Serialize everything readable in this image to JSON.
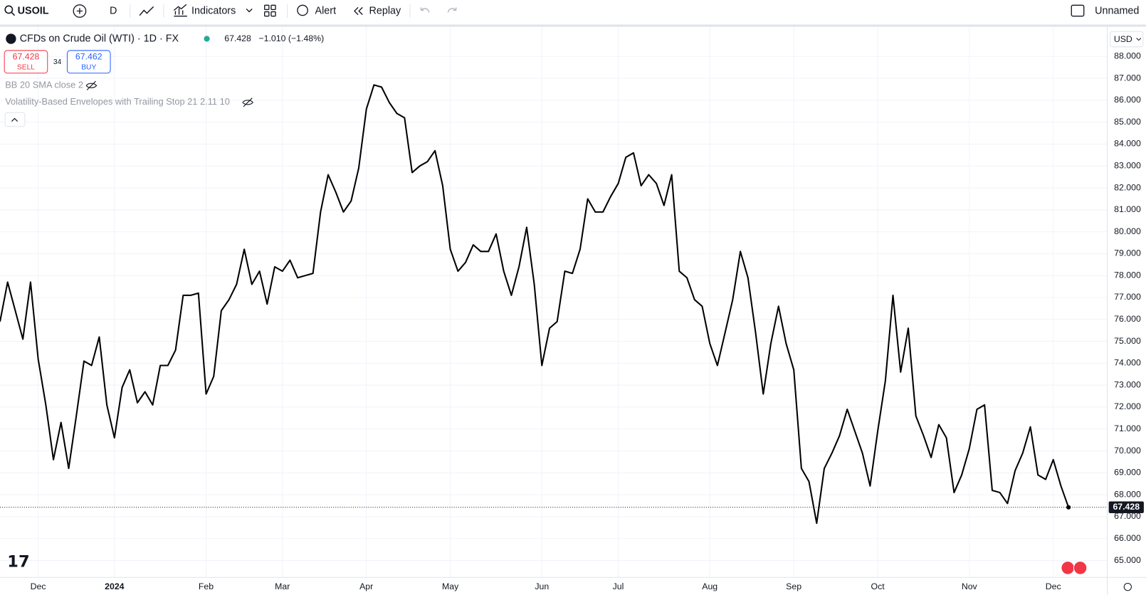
{
  "toolbar": {
    "symbol": "USOIL",
    "interval": "D",
    "indicators": "Indicators",
    "alert": "Alert",
    "replay": "Replay",
    "layout": "Unnamed"
  },
  "legend": {
    "instrument": "CFDs on Crude Oil (WTI) · 1D · FX",
    "change": "−1.010 (−1.48%)",
    "sell_price": "67.428",
    "sell": "SELL",
    "spread": "34",
    "buy_price": "67.462",
    "buy": "BUY",
    "indicator_1": "BB 20 SMA close 2",
    "indicator_2": "Volatility-Based Envelopes with Trailing Stop 21 2.11 10"
  },
  "currency": "USD",
  "chart_data": {
    "type": "line",
    "color": "#000000",
    "grid": true,
    "categories": [
      null,
      null,
      null,
      null,
      null,
      "Dec",
      null,
      null,
      null,
      null,
      null,
      null,
      null,
      null,
      null,
      "2024",
      null,
      null,
      null,
      null,
      null,
      null,
      null,
      null,
      null,
      null,
      null,
      "Feb",
      null,
      null,
      null,
      null,
      null,
      null,
      null,
      null,
      null,
      "Mar",
      null,
      null,
      null,
      null,
      null,
      null,
      null,
      null,
      null,
      null,
      "Apr",
      null,
      null,
      null,
      null,
      null,
      null,
      null,
      null,
      null,
      null,
      "May",
      null,
      null,
      null,
      null,
      null,
      null,
      null,
      null,
      null,
      null,
      null,
      "Jun",
      null,
      null,
      null,
      null,
      null,
      null,
      null,
      null,
      null,
      "Jul",
      null,
      null,
      null,
      null,
      null,
      null,
      null,
      null,
      null,
      null,
      null,
      "Aug",
      null,
      null,
      null,
      null,
      null,
      null,
      null,
      null,
      null,
      null,
      "Sep",
      null,
      null,
      null,
      null,
      null,
      null,
      null,
      null,
      null,
      null,
      "Oct",
      null,
      null,
      null,
      null,
      null,
      null,
      null,
      null,
      null,
      null,
      null,
      "Nov",
      null,
      null,
      null,
      null,
      null,
      null,
      null,
      null,
      null,
      null,
      "Dec",
      null,
      null
    ],
    "values": [
      75.9,
      77.7,
      76.4,
      75.1,
      77.7,
      74.2,
      72.1,
      69.6,
      71.3,
      69.2,
      71.6,
      74.1,
      73.9,
      75.2,
      72.1,
      70.6,
      72.9,
      73.7,
      72.2,
      72.7,
      72.1,
      73.9,
      73.9,
      74.6,
      77.1,
      77.1,
      77.2,
      72.6,
      73.4,
      76.4,
      76.9,
      77.6,
      79.2,
      77.6,
      78.2,
      76.7,
      78.4,
      78.2,
      78.7,
      77.9,
      78.0,
      78.1,
      80.9,
      82.6,
      81.8,
      80.9,
      81.4,
      82.9,
      85.6,
      86.7,
      86.6,
      85.9,
      85.4,
      85.2,
      82.7,
      83.0,
      83.2,
      83.7,
      82.1,
      79.2,
      78.2,
      78.6,
      79.4,
      79.1,
      79.1,
      79.9,
      78.2,
      77.1,
      78.4,
      80.2,
      77.6,
      73.9,
      75.6,
      75.9,
      78.2,
      78.1,
      79.2,
      81.5,
      80.9,
      80.9,
      81.6,
      82.2,
      83.4,
      83.6,
      82.1,
      82.6,
      82.2,
      81.2,
      82.6,
      78.2,
      77.9,
      76.9,
      76.6,
      74.9,
      73.9,
      75.4,
      76.9,
      79.1,
      77.9,
      75.4,
      72.6,
      74.9,
      76.6,
      74.9,
      73.7,
      69.2,
      68.6,
      66.7,
      69.2,
      69.9,
      70.7,
      71.9,
      70.9,
      69.9,
      68.4,
      70.9,
      73.2,
      77.1,
      73.6,
      75.6,
      71.6,
      70.7,
      69.7,
      71.2,
      70.6,
      68.1,
      68.9,
      70.1,
      71.9,
      72.1,
      68.2,
      68.1,
      67.6,
      69.1,
      69.9,
      71.1,
      68.9,
      68.7,
      69.6,
      68.4,
      67.428
    ],
    "ylim": [
      64.23,
      89.37
    ],
    "yticks": [
      {
        "value": 65,
        "label": "65.000"
      },
      {
        "value": 66,
        "label": "66.000"
      },
      {
        "value": 67,
        "label": "67.000"
      },
      {
        "value": 68,
        "label": "68.000"
      },
      {
        "value": 69,
        "label": "69.000"
      },
      {
        "value": 70,
        "label": "70.000"
      },
      {
        "value": 71,
        "label": "71.000"
      },
      {
        "value": 72,
        "label": "72.000"
      },
      {
        "value": 73,
        "label": "73.000"
      },
      {
        "value": 74,
        "label": "74.000"
      },
      {
        "value": 75,
        "label": "75.000"
      },
      {
        "value": 76,
        "label": "76.000"
      },
      {
        "value": 77,
        "label": "77.000"
      },
      {
        "value": 78,
        "label": "78.000"
      },
      {
        "value": 79,
        "label": "79.000"
      },
      {
        "value": 80,
        "label": "80.000"
      },
      {
        "value": 81,
        "label": "81.000"
      },
      {
        "value": 82,
        "label": "82.000"
      },
      {
        "value": 83,
        "label": "83.000"
      },
      {
        "value": 84,
        "label": "84.000"
      },
      {
        "value": 85,
        "label": "85.000"
      },
      {
        "value": 86,
        "label": "86.000"
      },
      {
        "value": 87,
        "label": "87.000"
      },
      {
        "value": 88,
        "label": "88.000"
      }
    ]
  }
}
